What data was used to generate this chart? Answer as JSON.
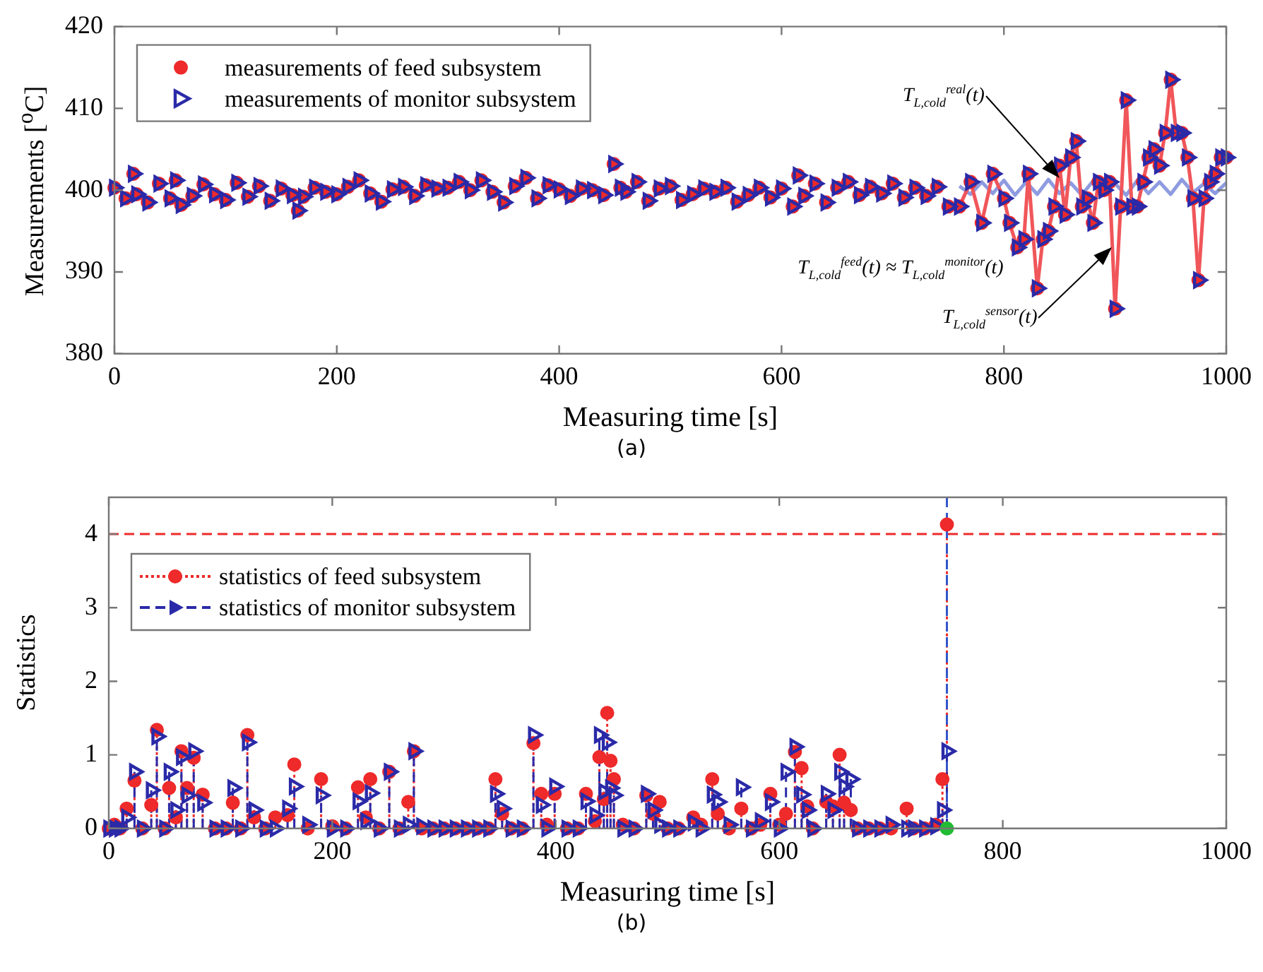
{
  "chart_data": [
    {
      "type": "scatter",
      "subtitle": "(a)",
      "xlabel": "Measuring time [s]",
      "ylabel": "Measurements [$^{o}$C]",
      "xlim": [
        0,
        1000
      ],
      "xticks": [
        0,
        200,
        400,
        600,
        800,
        1000
      ],
      "ylim": [
        380,
        420
      ],
      "yticks": [
        380,
        390,
        400,
        410,
        420
      ],
      "legend": "top left",
      "annotations": [
        {
          "text": "T$_{L,cold}$$^{real}$(t)",
          "x": 850,
          "y": 401.5
        },
        {
          "text": "T$_{L,cold}$$^{sensor}$(t)",
          "x": 897,
          "y": 393
        },
        "T$_{L,cold}$$^{feed}$(t) ≈ T$_{L,cold}$$^{monitor}$(t)"
      ],
      "series": [
        {
          "type": "line",
          "color": "#f0565a",
          "marker": "none",
          "line_style": "solid",
          "x": [
            760,
            770,
            780,
            790,
            800,
            805,
            812,
            818,
            822,
            830,
            835,
            840,
            845,
            850,
            855,
            860,
            865,
            870,
            875,
            880,
            885,
            890,
            895,
            900,
            905,
            910,
            915,
            920,
            925,
            930,
            935,
            940,
            945,
            950,
            955,
            960,
            965,
            970,
            975,
            980,
            985,
            990,
            995,
            1000
          ],
          "values": [
            398,
            401,
            396,
            402,
            399,
            396,
            393,
            394,
            402,
            388,
            394,
            395,
            398,
            403,
            397,
            404,
            406,
            398,
            399,
            396,
            401,
            400,
            401,
            385.5,
            398,
            411,
            398,
            398,
            401,
            404,
            405,
            403,
            407,
            413.5,
            407,
            407,
            404,
            399,
            389,
            399,
            401,
            402,
            404,
            404
          ]
        },
        {
          "type": "line",
          "color": "#8f9be0",
          "marker": "none",
          "line_style": "solid",
          "x": [
            760,
            770,
            780,
            790,
            800,
            810,
            820,
            830,
            840,
            850,
            860,
            870,
            880,
            890,
            900,
            910,
            920,
            930,
            940,
            950,
            960,
            970,
            980,
            990,
            1000
          ],
          "values": [
            400.5,
            399.5,
            401,
            399.6,
            401.2,
            399.4,
            401,
            399.5,
            401.3,
            399.6,
            400.9,
            399.4,
            401.1,
            399.7,
            400.8,
            399.4,
            401.2,
            399.6,
            401,
            399.5,
            401.3,
            399.7,
            400.8,
            399.6,
            400.9
          ]
        },
        {
          "name": "measurements of feed subsystem",
          "color": "#ee2a2a",
          "marker": "circle",
          "x": [
            0,
            10,
            17,
            20,
            30,
            40,
            50,
            55,
            60,
            70,
            80,
            90,
            100,
            110,
            120,
            130,
            140,
            150,
            160,
            165,
            170,
            180,
            190,
            200,
            210,
            220,
            230,
            240,
            250,
            260,
            270,
            280,
            290,
            300,
            310,
            320,
            330,
            340,
            350,
            360,
            370,
            380,
            390,
            400,
            410,
            420,
            430,
            440,
            449,
            455,
            460,
            470,
            480,
            490,
            500,
            510,
            520,
            530,
            540,
            550,
            560,
            570,
            580,
            590,
            600,
            610,
            615,
            620,
            630,
            640,
            650,
            660,
            670,
            680,
            690,
            700,
            710,
            720,
            730,
            740,
            750,
            760,
            770,
            780,
            790,
            800,
            805,
            812,
            818,
            822,
            830,
            835,
            840,
            845,
            850,
            855,
            860,
            865,
            870,
            875,
            880,
            885,
            890,
            895,
            900,
            905,
            910,
            915,
            920,
            925,
            930,
            935,
            940,
            945,
            950,
            955,
            960,
            965,
            970,
            975,
            980,
            985,
            990,
            995,
            1000
          ],
          "values": [
            400.3,
            399,
            402,
            399.5,
            398.5,
            400.8,
            399,
            401.2,
            398.2,
            399.3,
            400.7,
            399.5,
            398.8,
            400.9,
            399.2,
            400.5,
            398.7,
            400.2,
            399.4,
            397.5,
            399.2,
            400.3,
            399.8,
            399.5,
            400.4,
            401.2,
            399.6,
            398.6,
            400.1,
            400.4,
            399.3,
            400.6,
            400.2,
            400.3,
            401,
            400,
            401.2,
            399.8,
            398.5,
            400.5,
            401.5,
            399,
            400.6,
            400.1,
            399.3,
            400.2,
            400,
            399.4,
            403.2,
            400.3,
            399.8,
            401,
            398.7,
            400.2,
            400.5,
            398.8,
            399.5,
            400.2,
            399.8,
            400.3,
            398.6,
            399.4,
            400.3,
            399.1,
            400.2,
            398,
            401.8,
            399.3,
            400.8,
            398.5,
            400.3,
            401,
            399.4,
            400.4,
            399.6,
            400.8,
            399.1,
            400.3,
            399.3,
            400.4,
            398,
            398,
            401,
            396,
            402,
            399,
            396,
            393,
            394,
            402,
            388,
            394,
            395,
            398,
            403,
            397,
            404,
            406,
            398,
            399,
            396,
            401,
            400,
            401,
            385.5,
            398,
            411,
            398,
            398,
            401,
            404,
            405,
            403,
            407,
            413.5,
            407,
            407,
            404,
            399,
            389,
            399,
            401,
            402,
            404,
            404
          ]
        },
        {
          "name": "measurements of monitor subsystem",
          "color": "#2a2aa8",
          "marker": "triangle",
          "x": [
            0,
            10,
            17,
            20,
            30,
            40,
            50,
            55,
            60,
            70,
            80,
            90,
            100,
            110,
            120,
            130,
            140,
            150,
            160,
            165,
            170,
            180,
            190,
            200,
            210,
            220,
            230,
            240,
            250,
            260,
            270,
            280,
            290,
            300,
            310,
            320,
            330,
            340,
            350,
            360,
            370,
            380,
            390,
            400,
            410,
            420,
            430,
            440,
            449,
            455,
            460,
            470,
            480,
            490,
            500,
            510,
            520,
            530,
            540,
            550,
            560,
            570,
            580,
            590,
            600,
            610,
            615,
            620,
            630,
            640,
            650,
            660,
            670,
            680,
            690,
            700,
            710,
            720,
            730,
            740,
            750,
            760,
            770,
            780,
            790,
            800,
            805,
            812,
            818,
            822,
            830,
            835,
            840,
            845,
            850,
            855,
            860,
            865,
            870,
            875,
            880,
            885,
            890,
            895,
            900,
            905,
            910,
            915,
            920,
            925,
            930,
            935,
            940,
            945,
            950,
            955,
            960,
            965,
            970,
            975,
            980,
            985,
            990,
            995,
            1000
          ],
          "values": [
            400.3,
            399,
            402,
            399.5,
            398.5,
            400.8,
            399,
            401.2,
            398.2,
            399.3,
            400.7,
            399.5,
            398.8,
            400.9,
            399.2,
            400.5,
            398.7,
            400.2,
            399.4,
            397.5,
            399.2,
            400.3,
            399.8,
            399.5,
            400.4,
            401.2,
            399.6,
            398.6,
            400.1,
            400.4,
            399.3,
            400.6,
            400.2,
            400.3,
            401,
            400,
            401.2,
            399.8,
            398.5,
            400.5,
            401.5,
            399,
            400.6,
            400.1,
            399.3,
            400.2,
            400,
            399.4,
            403.2,
            400.3,
            399.8,
            401,
            398.7,
            400.2,
            400.5,
            398.8,
            399.5,
            400.2,
            399.8,
            400.3,
            398.6,
            399.4,
            400.3,
            399.1,
            400.2,
            398,
            401.8,
            399.3,
            400.8,
            398.5,
            400.3,
            401,
            399.4,
            400.4,
            399.6,
            400.8,
            399.1,
            400.3,
            399.3,
            400.4,
            398,
            398,
            401,
            396,
            402,
            399,
            396,
            393,
            394,
            402,
            388,
            394,
            395,
            398,
            403,
            397,
            404,
            406,
            398,
            399,
            396,
            401,
            400,
            401,
            385.5,
            398,
            411,
            398,
            398,
            401,
            404,
            405,
            403,
            407,
            413.5,
            407,
            407,
            404,
            399,
            389,
            399,
            401,
            402,
            404,
            404
          ]
        }
      ]
    },
    {
      "type": "lollipop",
      "subtitle": "(b)",
      "xlabel": "Measuring time [s]",
      "ylabel": "Statistics",
      "xlim": [
        0,
        1000
      ],
      "xticks": [
        0,
        200,
        400,
        600,
        800,
        1000
      ],
      "ylim": [
        0,
        4.5
      ],
      "yticks": [
        0,
        1,
        2,
        3,
        4
      ],
      "legend": "top left",
      "ref_lines": [
        {
          "axis": "y",
          "value": 4,
          "color": "#ee2a2a",
          "line_style": "dashed"
        },
        {
          "axis": "x",
          "value": 750,
          "color": "#3355cc",
          "line_style": "dashed"
        }
      ],
      "series": [
        {
          "name": "statistics of feed subsystem",
          "color": "#ee2a2a",
          "marker": "circle",
          "line_style": "dotted",
          "x": [
            0,
            5,
            10,
            16,
            23,
            30,
            38,
            43,
            50,
            54,
            60,
            65,
            70,
            76,
            84,
            95,
            105,
            111,
            118,
            124,
            130,
            140,
            149,
            160,
            166,
            178,
            190,
            200,
            212,
            223,
            230,
            234,
            242,
            251,
            260,
            268,
            273,
            280,
            290,
            300,
            310,
            320,
            330,
            340,
            346,
            352,
            360,
            370,
            380,
            387,
            392,
            399,
            410,
            420,
            427,
            435,
            439,
            443,
            446,
            449,
            452,
            460,
            470,
            481,
            487,
            493,
            500,
            510,
            523,
            530,
            540,
            545,
            555,
            566,
            575,
            583,
            592,
            600,
            606,
            614,
            620,
            625,
            630,
            642,
            648,
            654,
            658,
            664,
            670,
            680,
            690,
            700,
            714,
            720,
            730,
            740,
            746,
            750
          ],
          "values": [
            0,
            0.05,
            0,
            0.27,
            0.65,
            0,
            0.32,
            1.34,
            0,
            0.55,
            0.15,
            1.05,
            0.55,
            0.96,
            0.46,
            0,
            0,
            0.35,
            0,
            1.27,
            0.15,
            0,
            0.15,
            0.18,
            0.87,
            0,
            0.67,
            0.03,
            0,
            0.56,
            0.15,
            0.67,
            0,
            0.77,
            0,
            0.36,
            1.05,
            0,
            0,
            0,
            0,
            0,
            0,
            0,
            0.67,
            0.2,
            0,
            0,
            1.16,
            0.47,
            0.05,
            0.47,
            0,
            0,
            0.47,
            0.1,
            0.97,
            0.4,
            1.57,
            0.92,
            0.67,
            0.05,
            0,
            0.45,
            0.2,
            0.36,
            0,
            0,
            0.15,
            0.05,
            0.67,
            0.2,
            0,
            0.27,
            0,
            0.05,
            0.47,
            0.05,
            0.2,
            1.04,
            0.82,
            0.3,
            0,
            0.36,
            0.3,
            1,
            0.35,
            0.25,
            0,
            0,
            0,
            0,
            0.27,
            0,
            0,
            0.05,
            0.67,
            4.13
          ]
        },
        {
          "name": "statistics of monitor subsystem",
          "color": "#2a2aa8",
          "marker": "triangle",
          "line_style": "dashed",
          "x": [
            0,
            5,
            10,
            16,
            23,
            30,
            38,
            43,
            50,
            54,
            60,
            65,
            70,
            76,
            84,
            95,
            105,
            111,
            118,
            124,
            130,
            140,
            149,
            160,
            166,
            178,
            190,
            200,
            212,
            223,
            230,
            234,
            242,
            251,
            260,
            268,
            273,
            280,
            290,
            300,
            310,
            320,
            330,
            340,
            346,
            352,
            360,
            370,
            380,
            387,
            392,
            399,
            410,
            420,
            427,
            435,
            439,
            443,
            446,
            449,
            452,
            460,
            470,
            481,
            487,
            493,
            500,
            510,
            523,
            530,
            540,
            545,
            555,
            566,
            575,
            583,
            592,
            600,
            606,
            614,
            620,
            625,
            630,
            642,
            648,
            654,
            658,
            664,
            670,
            680,
            690,
            700,
            714,
            720,
            730,
            740,
            746,
            750
          ],
          "values": [
            0,
            0,
            0,
            0.15,
            0.77,
            0,
            0.52,
            1.25,
            0,
            0.77,
            0.25,
            0.97,
            0.45,
            1.05,
            0.35,
            0,
            0,
            0.55,
            0,
            1.17,
            0.25,
            0,
            0,
            0.27,
            0.57,
            0.05,
            0.45,
            0,
            0,
            0.37,
            0.1,
            0.48,
            0,
            0.77,
            0,
            0.05,
            1.05,
            0.03,
            0,
            0,
            0,
            0,
            0,
            0,
            0.47,
            0.27,
            0,
            0,
            1.27,
            0.32,
            0,
            0.57,
            0,
            0,
            0.37,
            0.18,
            1.27,
            0.5,
            1.17,
            0.55,
            0.45,
            0,
            0,
            0.47,
            0.25,
            0.05,
            0,
            0,
            0.08,
            0,
            0.46,
            0.36,
            0.05,
            0.56,
            0,
            0.1,
            0.36,
            0,
            0.77,
            1.11,
            0.46,
            0.25,
            0,
            0.47,
            0.25,
            0.77,
            0.57,
            0.67,
            0,
            0,
            0,
            0.05,
            0,
            0,
            0,
            0.03,
            0.25,
            1.05
          ]
        },
        {
          "type": "scatter",
          "color": "#22bb33",
          "marker": "circle",
          "x": [
            750
          ],
          "values": [
            0
          ]
        }
      ]
    }
  ]
}
